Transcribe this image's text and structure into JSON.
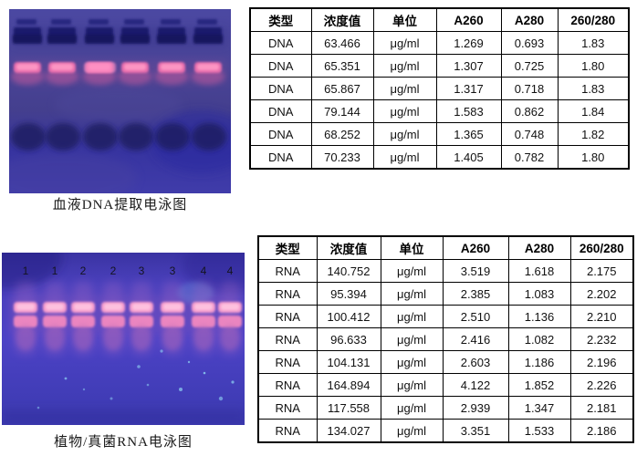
{
  "dna_section": {
    "caption": "血液DNA提取电泳图",
    "gel": {
      "lanes": 6
    },
    "table": {
      "headers": [
        "类型",
        "浓度值",
        "单位",
        "A260",
        "A280",
        "260/280"
      ],
      "rows": [
        [
          "DNA",
          "63.466",
          "μg/ml",
          "1.269",
          "0.693",
          "1.83"
        ],
        [
          "DNA",
          "65.351",
          "μg/ml",
          "1.307",
          "0.725",
          "1.80"
        ],
        [
          "DNA",
          "65.867",
          "μg/ml",
          "1.317",
          "0.718",
          "1.83"
        ],
        [
          "DNA",
          "79.144",
          "μg/ml",
          "1.583",
          "0.862",
          "1.84"
        ],
        [
          "DNA",
          "68.252",
          "μg/ml",
          "1.365",
          "0.748",
          "1.82"
        ],
        [
          "DNA",
          "70.233",
          "μg/ml",
          "1.405",
          "0.782",
          "1.80"
        ]
      ]
    }
  },
  "rna_section": {
    "caption": "植物/真菌RNA电泳图",
    "gel": {
      "lanes": 8,
      "lane_labels": [
        "1",
        "1",
        "2",
        "2",
        "3",
        "3",
        "4",
        "4"
      ]
    },
    "table": {
      "headers": [
        "类型",
        "浓度值",
        "单位",
        "A260",
        "A280",
        "260/280"
      ],
      "rows": [
        [
          "RNA",
          "140.752",
          "μg/ml",
          "3.519",
          "1.618",
          "2.175"
        ],
        [
          "RNA",
          "95.394",
          "μg/ml",
          "2.385",
          "1.083",
          "2.202"
        ],
        [
          "RNA",
          "100.412",
          "μg/ml",
          "2.510",
          "1.136",
          "2.210"
        ],
        [
          "RNA",
          "96.633",
          "μg/ml",
          "2.416",
          "1.082",
          "2.232"
        ],
        [
          "RNA",
          "104.131",
          "μg/ml",
          "2.603",
          "1.186",
          "2.196"
        ],
        [
          "RNA",
          "164.894",
          "μg/ml",
          "4.122",
          "1.852",
          "2.226"
        ],
        [
          "RNA",
          "117.558",
          "μg/ml",
          "2.939",
          "1.347",
          "2.181"
        ],
        [
          "RNA",
          "134.027",
          "μg/ml",
          "3.351",
          "1.533",
          "2.186"
        ]
      ]
    }
  },
  "colors": {
    "gel_dna_background": "#443f90",
    "gel_rna_background": "#4a41c2",
    "band_pink": "#ff8ec4",
    "well_dark": "#191968",
    "table_border": "#000000"
  }
}
